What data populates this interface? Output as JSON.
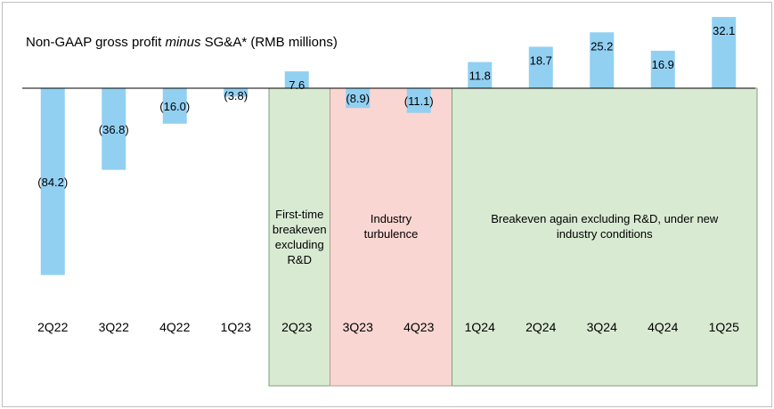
{
  "chart_data": {
    "type": "bar",
    "title_prefix": "Non-GAAP gross profit ",
    "title_italic": "minus",
    "title_suffix": " SG&A* (RMB millions)",
    "categories": [
      "2Q22",
      "3Q22",
      "4Q22",
      "1Q23",
      "2Q23",
      "3Q23",
      "4Q23",
      "1Q24",
      "2Q24",
      "3Q24",
      "4Q24",
      "1Q25"
    ],
    "values": [
      -84.2,
      -36.8,
      -16.0,
      -3.8,
      7.6,
      -8.9,
      -11.1,
      11.8,
      18.7,
      25.2,
      16.9,
      32.1
    ],
    "labels": [
      "(84.2)",
      "(36.8)",
      "(16.0)",
      "(3.8)",
      "7.6",
      "(8.9)",
      "(11.1)",
      "11.8",
      "18.7",
      "25.2",
      "16.9",
      "32.1"
    ],
    "bar_color": "#92d0f2",
    "regions": [
      {
        "start": 4,
        "end": 4,
        "text": [
          "First-time",
          "breakeven",
          "excluding",
          "R&D"
        ],
        "fill": "#d9ead3",
        "stroke": "#7f9f78"
      },
      {
        "start": 5,
        "end": 6,
        "text": [
          "Industry",
          "turbulence"
        ],
        "fill": "#f9d6d2",
        "stroke": "#b99a96"
      },
      {
        "start": 7,
        "end": 11,
        "text": [
          "Breakeven again excluding R&D, under new",
          "industry conditions"
        ],
        "fill": "#d9ead3",
        "stroke": "#7f9f78"
      }
    ],
    "grid": false,
    "legend": "none"
  }
}
